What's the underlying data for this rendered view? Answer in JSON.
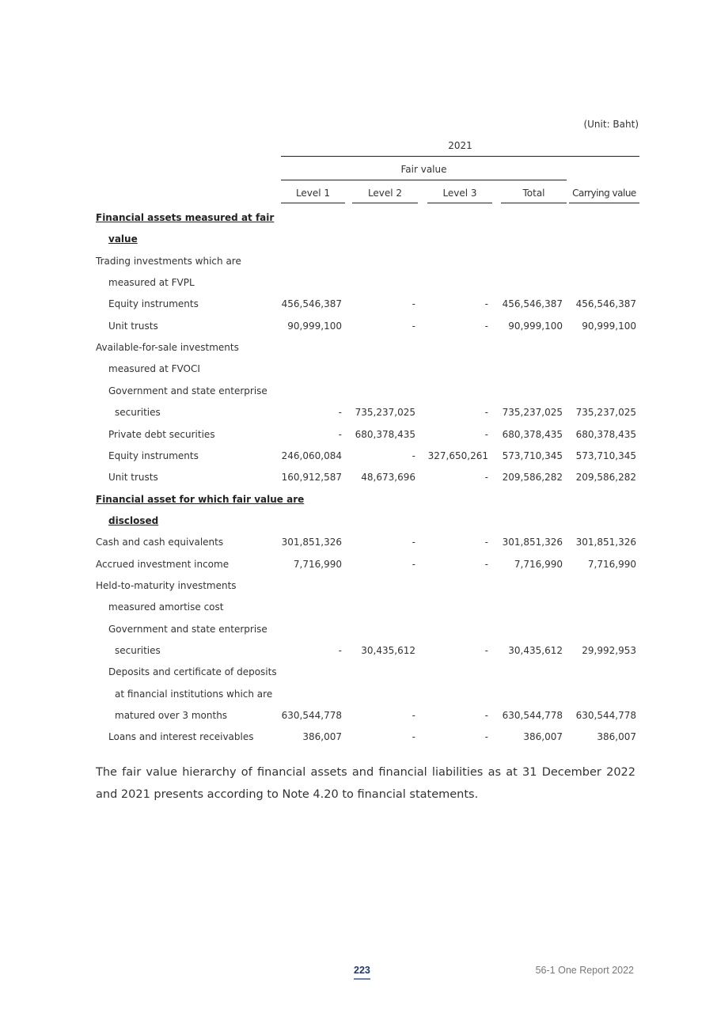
{
  "table": {
    "unit": "(Unit: Baht)",
    "year": "2021",
    "fair_value_header": "Fair value",
    "columns": [
      "Level 1",
      "Level 2",
      "Level 3",
      "Total",
      "Carrying value"
    ],
    "rows": [
      {
        "label": "Financial assets measured at fair ",
        "indent": 0,
        "heading": true,
        "values": null
      },
      {
        "label": "value",
        "indent": 1,
        "heading": true,
        "values": null
      },
      {
        "label": "Trading investments which are",
        "indent": 0,
        "heading": false,
        "values": null
      },
      {
        "label": "measured at FVPL",
        "indent": 1,
        "heading": false,
        "values": null
      },
      {
        "label": "Equity instruments",
        "indent": 1,
        "heading": false,
        "values": [
          "456,546,387",
          "-",
          "-",
          "456,546,387",
          "456,546,387"
        ]
      },
      {
        "label": "Unit trusts",
        "indent": 1,
        "heading": false,
        "values": [
          "90,999,100",
          "-",
          "-",
          "90,999,100",
          "90,999,100"
        ]
      },
      {
        "label": "Available-for-sale investments",
        "indent": 0,
        "heading": false,
        "values": null
      },
      {
        "label": "measured at FVOCI",
        "indent": 1,
        "heading": false,
        "values": null
      },
      {
        "label": "Government and state enterprise",
        "indent": 1,
        "heading": false,
        "values": null
      },
      {
        "label": "securities",
        "indent": 2,
        "heading": false,
        "values": [
          "-",
          "735,237,025",
          "-",
          "735,237,025",
          "735,237,025"
        ]
      },
      {
        "label": "Private debt securities",
        "indent": 1,
        "heading": false,
        "values": [
          "-",
          "680,378,435",
          "-",
          "680,378,435",
          "680,378,435"
        ]
      },
      {
        "label": "Equity instruments",
        "indent": 1,
        "heading": false,
        "values": [
          "246,060,084",
          "-",
          "327,650,261",
          "573,710,345",
          "573,710,345"
        ]
      },
      {
        "label": "Unit trusts",
        "indent": 1,
        "heading": false,
        "values": [
          "160,912,587",
          "48,673,696",
          "-",
          "209,586,282",
          "209,586,282"
        ]
      },
      {
        "label": "Financial asset for which fair value are",
        "indent": 0,
        "heading": true,
        "values": null
      },
      {
        "label": "disclosed",
        "indent": 1,
        "heading": true,
        "values": null
      },
      {
        "label": "Cash and cash equivalents",
        "indent": 0,
        "heading": false,
        "values": [
          "301,851,326",
          "-",
          "-",
          "301,851,326",
          "301,851,326"
        ]
      },
      {
        "label": "Accrued investment income",
        "indent": 0,
        "heading": false,
        "values": [
          "7,716,990",
          "-",
          "-",
          "7,716,990",
          "7,716,990"
        ]
      },
      {
        "label": "Held-to-maturity investments",
        "indent": 0,
        "heading": false,
        "values": null
      },
      {
        "label": "measured amortise cost",
        "indent": 1,
        "heading": false,
        "values": null
      },
      {
        "label": "Government and state enterprise",
        "indent": 1,
        "heading": false,
        "values": null
      },
      {
        "label": "securities",
        "indent": 2,
        "heading": false,
        "values": [
          "-",
          "30,435,612",
          "-",
          "30,435,612",
          "29,992,953"
        ]
      },
      {
        "label": "Deposits and certificate of deposits",
        "indent": 1,
        "heading": false,
        "values": null
      },
      {
        "label": "at financial institutions which are",
        "indent": 2,
        "heading": false,
        "values": null
      },
      {
        "label": "matured over 3 months",
        "indent": 2,
        "heading": false,
        "values": [
          "630,544,778",
          "-",
          "-",
          "630,544,778",
          "630,544,778"
        ]
      },
      {
        "label": "Loans and interest receivables",
        "indent": 1,
        "heading": false,
        "values": [
          "386,007",
          "-",
          "-",
          "386,007",
          "386,007"
        ]
      }
    ]
  },
  "paragraph": "The fair value hierarchy of financial assets and financial liabilities as at 31 December 2022 and 2021 presents according to Note 4.20 to financial statements.",
  "footer": {
    "page_number": "223",
    "report_title": "56-1 One Report 2022"
  },
  "colors": {
    "page_number": "#1f3a68",
    "text": "#333333"
  }
}
